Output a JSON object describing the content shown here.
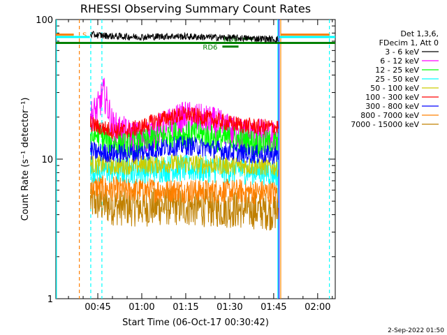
{
  "chart_data": {
    "type": "line",
    "title": "RHESSI Observing Summary Count Rates",
    "xlabel": "Start Time (06-Oct-17 00:30:42)",
    "ylabel": "Count Rate (s⁻¹ detector⁻¹)",
    "yscale": "log",
    "ylim": [
      1,
      100
    ],
    "xlim_minutes": [
      30.7,
      126.0
    ],
    "x_ticks": [
      {
        "t": 45,
        "label": "00:45"
      },
      {
        "t": 60,
        "label": "01:00"
      },
      {
        "t": 75,
        "label": "01:15"
      },
      {
        "t": 90,
        "label": "01:30"
      },
      {
        "t": 105,
        "label": "01:45"
      },
      {
        "t": 120,
        "label": "02:00"
      }
    ],
    "y_ticks": [
      {
        "v": 1,
        "label": "1"
      },
      {
        "v": 10,
        "label": "10"
      },
      {
        "v": 100,
        "label": "100"
      }
    ],
    "legend": {
      "position": "top-right",
      "header": [
        "Det 1,3,6,",
        "FDecim 1, Att 0"
      ]
    },
    "series": [
      {
        "name": "3 - 6 keV",
        "color": "#000000",
        "x": [
          42.5,
          50,
          60,
          70,
          80,
          90,
          100,
          106.5
        ],
        "y": [
          78,
          76,
          75,
          76,
          75,
          74,
          73,
          72
        ]
      },
      {
        "name": "6 - 12 keV",
        "color": "#ff00ff",
        "x": [
          42.5,
          45,
          47,
          50,
          55,
          60,
          65,
          70,
          75,
          80,
          85,
          90,
          95,
          100,
          106.5
        ],
        "y": [
          20,
          23,
          30,
          17,
          15,
          14,
          16,
          18,
          20,
          19,
          18,
          16,
          15,
          15,
          14
        ]
      },
      {
        "name": "12 - 25 keV",
        "color": "#00ff00",
        "x": [
          42.5,
          45,
          50,
          55,
          60,
          65,
          70,
          75,
          80,
          85,
          90,
          95,
          100,
          106.5
        ],
        "y": [
          14,
          15,
          13,
          12.5,
          13,
          14,
          15,
          15,
          15,
          14,
          14,
          13.5,
          13,
          13
        ]
      },
      {
        "name": "25 - 50 keV",
        "color": "#00ffff",
        "x": [
          42.5,
          50,
          60,
          70,
          80,
          90,
          100,
          106.5
        ],
        "y": [
          8.5,
          8.3,
          8.4,
          8.6,
          8.5,
          8.4,
          8.2,
          8.0
        ]
      },
      {
        "name": "50 - 100 keV",
        "color": "#cccc00",
        "x": [
          42.5,
          50,
          60,
          70,
          80,
          90,
          100,
          106.5
        ],
        "y": [
          9.2,
          9.0,
          9.1,
          9.3,
          9.2,
          9.0,
          8.9,
          8.8
        ]
      },
      {
        "name": "100 - 300 keV",
        "color": "#ff0000",
        "x": [
          42.5,
          45,
          50,
          55,
          60,
          65,
          70,
          75,
          80,
          85,
          90,
          95,
          100,
          106.5
        ],
        "y": [
          18,
          17,
          16,
          16,
          17,
          19,
          20,
          21,
          20,
          19,
          18,
          17.5,
          17,
          17
        ]
      },
      {
        "name": "300 - 800 keV",
        "color": "#0000ff",
        "x": [
          42.5,
          45,
          50,
          55,
          60,
          65,
          70,
          75,
          80,
          85,
          90,
          95,
          100,
          106.5
        ],
        "y": [
          11.5,
          11.2,
          11,
          11,
          11.2,
          11.8,
          12.3,
          12.5,
          12.2,
          11.8,
          11.3,
          11,
          10.8,
          10.7
        ]
      },
      {
        "name": "800 - 7000 keV",
        "color": "#ff8000",
        "x": [
          42.5,
          50,
          60,
          70,
          80,
          90,
          100,
          106.5
        ],
        "y": [
          6.4,
          6.1,
          6.0,
          6.0,
          5.9,
          5.9,
          5.8,
          5.8
        ]
      },
      {
        "name": "7000 - 15000 keV",
        "color": "#c08000",
        "x": [
          42.5,
          50,
          60,
          70,
          80,
          90,
          100,
          106.5
        ],
        "y": [
          5.0,
          4.6,
          4.5,
          4.6,
          4.5,
          4.4,
          4.3,
          4.2
        ]
      }
    ],
    "markers": [
      {
        "label": "S",
        "color": "#ff8000",
        "x": [
          30.7,
          36.8
        ],
        "y": 78
      },
      {
        "label": "",
        "color": "#00ffff",
        "x": [
          30.7,
          42.3
        ],
        "y": 75
      },
      {
        "label": "",
        "color": "#008000",
        "x": [
          30.7,
          126.0
        ],
        "y": 68
      },
      {
        "label": "RD6",
        "color": "#008000",
        "x": [
          87.5,
          93
        ],
        "y": 64
      },
      {
        "label": "RD6",
        "color": "#008000",
        "x": [
          94.5,
          98
        ],
        "y": 73
      },
      {
        "label": "",
        "color": "#00ffff",
        "x": [
          106.8,
          126.0
        ],
        "y": 75
      },
      {
        "label": "",
        "color": "#ff8000",
        "x": [
          107.3,
          124.0
        ],
        "y": 78
      }
    ],
    "vlines": [
      {
        "t": 30.9,
        "color": "#00ffff",
        "style": "solid"
      },
      {
        "t": 38.7,
        "color": "#ff8000",
        "style": "dashed"
      },
      {
        "t": 42.6,
        "color": "#00ffff",
        "style": "dashed"
      },
      {
        "t": 46.4,
        "color": "#00ffff",
        "style": "dashed"
      },
      {
        "t": 106.4,
        "color": "#00ffff",
        "style": "solid"
      },
      {
        "t": 106.8,
        "color": "#0000ff",
        "style": "solid"
      },
      {
        "t": 107.4,
        "color": "#ff8000",
        "style": "solid"
      },
      {
        "t": 124.0,
        "color": "#00ffff",
        "style": "dashed"
      }
    ]
  },
  "footer_date": "2-Sep-2022 01:50"
}
